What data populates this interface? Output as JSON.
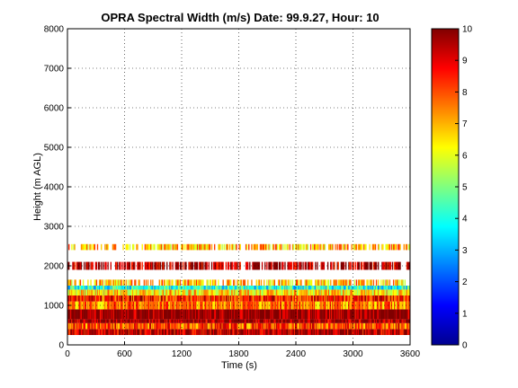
{
  "chart_data": {
    "type": "heatmap",
    "title": "OPRA Spectral Width (m/s)  Date: 99.9.27, Hour: 10",
    "xlabel": "Time (s)",
    "ylabel": "Height (m AGL)",
    "xlim": [
      0,
      3600
    ],
    "ylim": [
      0,
      8000
    ],
    "x_ticks": [
      0,
      600,
      1200,
      1800,
      2400,
      3000,
      3600
    ],
    "y_ticks": [
      0,
      1000,
      2000,
      3000,
      4000,
      5000,
      6000,
      7000,
      8000
    ],
    "colorbar": {
      "min": 0,
      "max": 10,
      "ticks": [
        0,
        1,
        2,
        3,
        4,
        5,
        6,
        7,
        8,
        9,
        10
      ],
      "colormap": "jet"
    },
    "grid": true,
    "bands": [
      {
        "height_range": [
          250,
          400
        ],
        "value": 9.5
      },
      {
        "height_range": [
          400,
          550
        ],
        "value": 8.0
      },
      {
        "height_range": [
          550,
          650
        ],
        "value": 9.8
      },
      {
        "height_range": [
          650,
          900
        ],
        "value": 10.0
      },
      {
        "height_range": [
          900,
          1100
        ],
        "value": 7.5
      },
      {
        "height_range": [
          1100,
          1250
        ],
        "value": 8.5
      },
      {
        "height_range": [
          1250,
          1400
        ],
        "value": 6.5
      },
      {
        "height_range": [
          1400,
          1500
        ],
        "value": 4.0
      },
      {
        "height_range": [
          1500,
          1650
        ],
        "value": 7.0
      },
      {
        "height_range": [
          1900,
          2100
        ],
        "value": 9.5
      },
      {
        "height_range": [
          2400,
          2550
        ],
        "value": 7.0
      }
    ]
  }
}
